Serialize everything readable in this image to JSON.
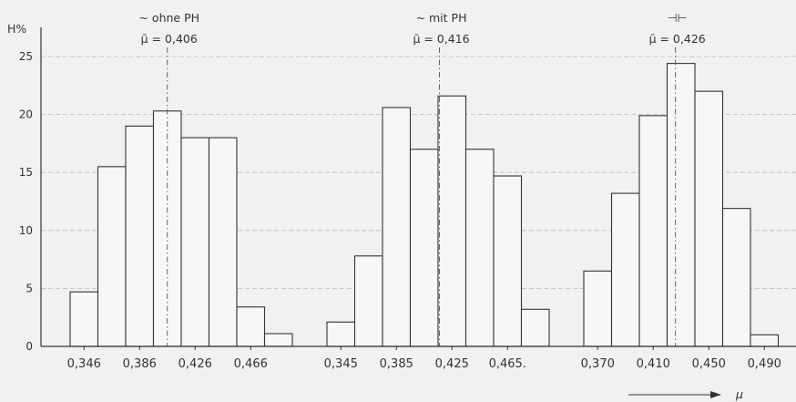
{
  "chart_data": {
    "type": "bar",
    "ylabel": "H%",
    "xlabel": "μ",
    "ylim": [
      0,
      25
    ],
    "yticks": [
      0,
      5,
      10,
      15,
      20,
      25
    ],
    "grid": true,
    "groups": [
      {
        "label": "~ ohne PH",
        "mean_label": "μ̄ = 0,406",
        "mean": 0.406,
        "bin_start": 0.336,
        "bin_width": 0.02,
        "values": [
          4.7,
          15.5,
          19.0,
          20.3,
          18.0,
          18.0,
          3.4,
          1.1
        ],
        "tick_values": [
          0.346,
          0.386,
          0.426,
          0.466
        ],
        "tick_labels": [
          "0,346",
          "0,386",
          "0,426",
          "0,466"
        ]
      },
      {
        "label": "~ mit PH",
        "mean_label": "μ̄ = 0,416",
        "mean": 0.416,
        "bin_start": 0.335,
        "bin_width": 0.02,
        "values": [
          2.1,
          7.8,
          20.6,
          17.0,
          21.6,
          17.0,
          14.7,
          3.2
        ],
        "tick_values": [
          0.345,
          0.385,
          0.425,
          0.465
        ],
        "tick_labels": [
          "0,345",
          "0,385",
          "0,425",
          "0,465."
        ]
      },
      {
        "label": "⊣⊢",
        "mean_label": "μ̄ = 0,426",
        "mean": 0.426,
        "bin_start": 0.36,
        "bin_width": 0.02,
        "values": [
          6.5,
          13.2,
          19.9,
          24.4,
          22.0,
          11.9,
          1.0
        ],
        "tick_values": [
          0.37,
          0.41,
          0.45,
          0.49
        ],
        "tick_labels": [
          "0,370",
          "0,410",
          "0,450",
          "0,490"
        ]
      }
    ]
  }
}
